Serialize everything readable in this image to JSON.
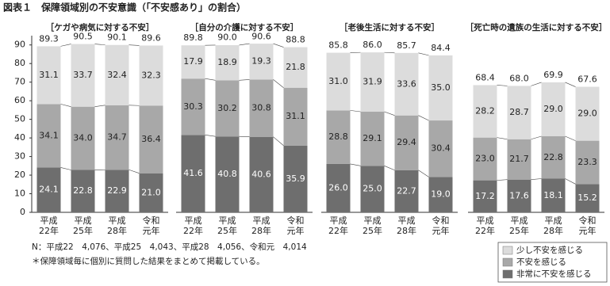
{
  "title": "図表１　保障領域別の不安意識（「不安感あり」の割合）",
  "notes": [
    "N：平成22　4,076、平成25　4,043、平成28　4,056、令和元　4,014",
    "＊保障領域毎に個別に質問した結果をまとめて掲載している。"
  ],
  "chart_data": [
    {
      "type": "stacked-bar",
      "title": "［ケガや病気に対する不安］",
      "categories": [
        "平成\n22年",
        "平成\n25年",
        "平成\n28年",
        "令和\n元年"
      ],
      "ylim": [
        0,
        95
      ],
      "yticks": [
        0,
        10,
        20,
        30,
        40,
        50,
        60,
        70,
        80,
        90
      ],
      "legend": "bottom-right",
      "totals": [
        89.3,
        90.5,
        90.1,
        89.6
      ],
      "total_labels": [
        "89.3",
        "90.5",
        "90.1",
        "89.6"
      ],
      "series": [
        {
          "name": "非常に不安を感じる",
          "color": "#6e6e6e",
          "values": [
            24.1,
            22.8,
            22.9,
            21.0
          ],
          "value_labels": [
            "24.1",
            "22.8",
            "22.9",
            "21.0"
          ]
        },
        {
          "name": "不安を感じる",
          "color": "#a8a8a8",
          "values": [
            34.1,
            34.0,
            34.7,
            36.4
          ],
          "value_labels": [
            "34.1",
            "34.0",
            "34.7",
            "36.4"
          ]
        },
        {
          "name": "少し不安を感じる",
          "color": "#dcdcdc",
          "values": [
            31.1,
            33.7,
            32.4,
            32.3
          ],
          "value_labels": [
            "31.1",
            "33.7",
            "32.4",
            "32.3"
          ]
        }
      ]
    },
    {
      "type": "stacked-bar",
      "title": "［自分の介護に対する不安］",
      "categories": [
        "平成\n22年",
        "平成\n25年",
        "平成\n28年",
        "令和\n元年"
      ],
      "ylim": [
        0,
        95
      ],
      "totals": [
        89.8,
        90.0,
        90.6,
        88.8
      ],
      "total_labels": [
        "89.8",
        "90.0",
        "90.6",
        "88.8"
      ],
      "series": [
        {
          "name": "非常に不安を感じる",
          "color": "#6e6e6e",
          "values": [
            41.6,
            40.8,
            40.6,
            35.9
          ],
          "value_labels": [
            "41.6",
            "40.8",
            "40.6",
            "35.9"
          ]
        },
        {
          "name": "不安を感じる",
          "color": "#a8a8a8",
          "values": [
            30.3,
            30.2,
            30.8,
            31.1
          ],
          "value_labels": [
            "30.3",
            "30.2",
            "30.8",
            "31.1"
          ]
        },
        {
          "name": "少し不安を感じる",
          "color": "#dcdcdc",
          "values": [
            17.9,
            18.9,
            19.3,
            21.8
          ],
          "value_labels": [
            "17.9",
            "18.9",
            "19.3",
            "21.8"
          ]
        }
      ]
    },
    {
      "type": "stacked-bar",
      "title": "［老後生活に対する不安］",
      "categories": [
        "平成\n22年",
        "平成\n25年",
        "平成\n28年",
        "令和\n元年"
      ],
      "ylim": [
        0,
        95
      ],
      "totals": [
        85.8,
        86.0,
        85.7,
        84.4
      ],
      "total_labels": [
        "85.8",
        "86.0",
        "85.7",
        "84.4"
      ],
      "series": [
        {
          "name": "非常に不安を感じる",
          "color": "#6e6e6e",
          "values": [
            26.0,
            25.0,
            22.7,
            19.0
          ],
          "value_labels": [
            "26.0",
            "25.0",
            "22.7",
            "19.0"
          ]
        },
        {
          "name": "不安を感じる",
          "color": "#a8a8a8",
          "values": [
            28.8,
            29.1,
            29.4,
            30.4
          ],
          "value_labels": [
            "28.8",
            "29.1",
            "29.4",
            "30.4"
          ]
        },
        {
          "name": "少し不安を感じる",
          "color": "#dcdcdc",
          "values": [
            31.0,
            31.9,
            33.6,
            35.0
          ],
          "value_labels": [
            "31.0",
            "31.9",
            "33.6",
            "35.0"
          ]
        }
      ]
    },
    {
      "type": "stacked-bar",
      "title": "［死亡時の遺族の生活に対する不安］",
      "categories": [
        "平成\n22年",
        "平成\n25年",
        "平成\n28年",
        "令和\n元年"
      ],
      "ylim": [
        0,
        95
      ],
      "totals": [
        68.4,
        68.0,
        69.9,
        67.6
      ],
      "total_labels": [
        "68.4",
        "68.0",
        "69.9",
        "67.6"
      ],
      "series": [
        {
          "name": "非常に不安を感じる",
          "color": "#6e6e6e",
          "values": [
            17.2,
            17.6,
            18.1,
            15.2
          ],
          "value_labels": [
            "17.2",
            "17.6",
            "18.1",
            "15.2"
          ]
        },
        {
          "name": "不安を感じる",
          "color": "#a8a8a8",
          "values": [
            23.0,
            21.7,
            22.8,
            23.3
          ],
          "value_labels": [
            "23.0",
            "21.7",
            "22.8",
            "23.3"
          ]
        },
        {
          "name": "少し不安を感じる",
          "color": "#dcdcdc",
          "values": [
            28.2,
            28.7,
            29.0,
            29.0
          ],
          "value_labels": [
            "28.2",
            "28.7",
            "29.0",
            "29.0"
          ]
        }
      ]
    }
  ]
}
